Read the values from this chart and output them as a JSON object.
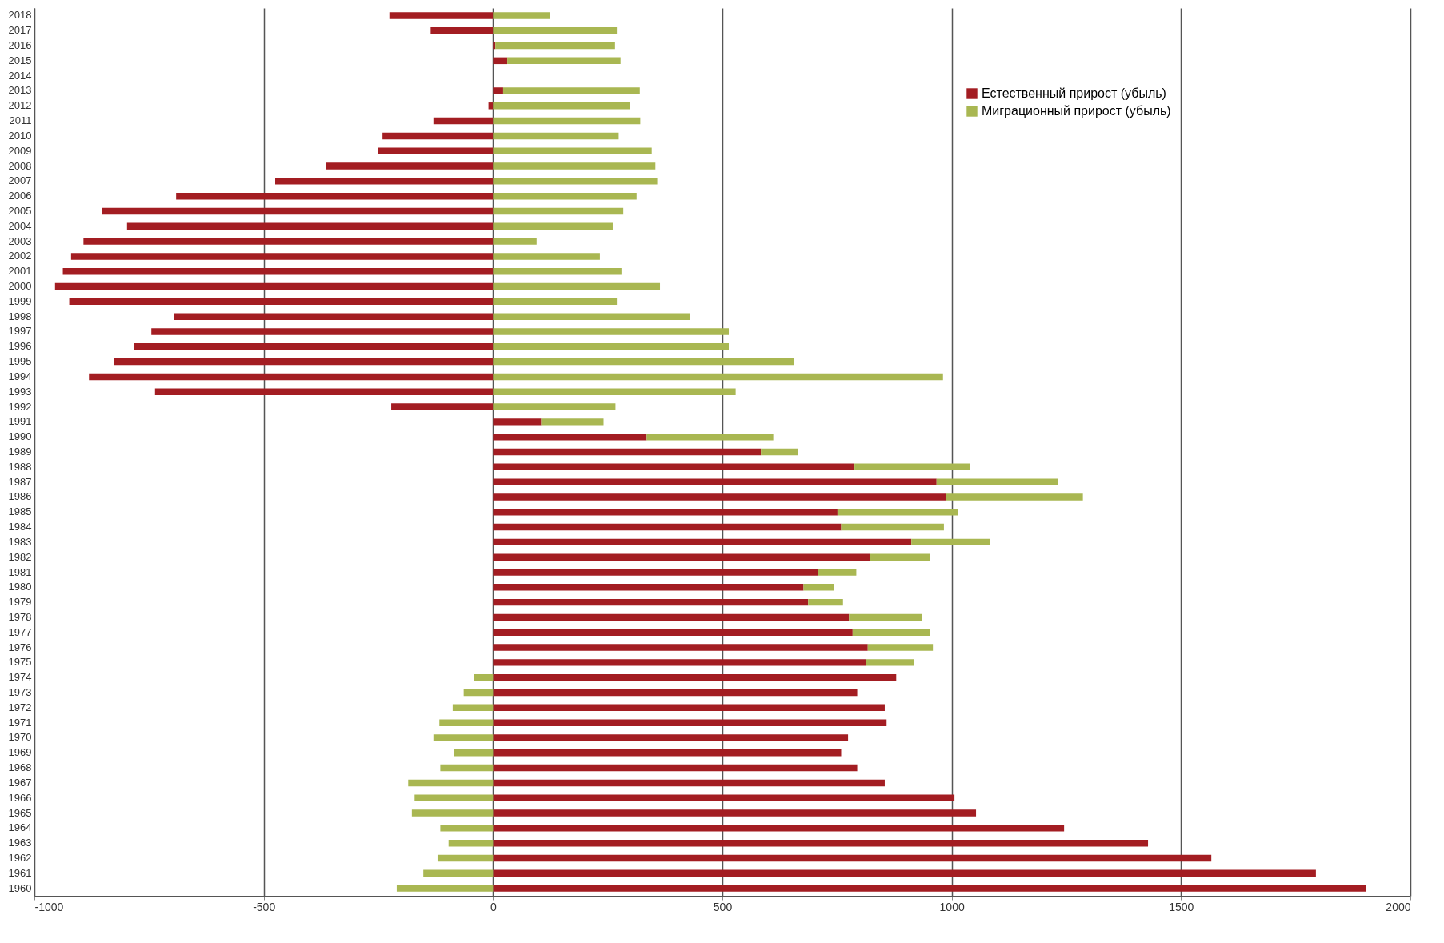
{
  "chart_data": {
    "type": "bar",
    "orientation": "horizontal",
    "stacked": true,
    "categories": [
      "2018",
      "2017",
      "2016",
      "2015",
      "2014",
      "2013",
      "2012",
      "2011",
      "2010",
      "2009",
      "2008",
      "2007",
      "2006",
      "2005",
      "2004",
      "2003",
      "2002",
      "2001",
      "2000",
      "1999",
      "1998",
      "1997",
      "1996",
      "1995",
      "1994",
      "1993",
      "1992",
      "1991",
      "1990",
      "1989",
      "1988",
      "1987",
      "1986",
      "1985",
      "1984",
      "1983",
      "1982",
      "1981",
      "1980",
      "1979",
      "1978",
      "1977",
      "1976",
      "1975",
      "1974",
      "1973",
      "1972",
      "1971",
      "1970",
      "1969",
      "1968",
      "1967",
      "1966",
      "1965",
      "1964",
      "1963",
      "1962",
      "1961",
      "1960"
    ],
    "series": [
      {
        "name": "Естественный прирост (убыль)",
        "color": "#a31d22",
        "values": [
          -226,
          -136,
          5,
          31,
          null,
          22,
          -10,
          -130,
          -241,
          -251,
          -364,
          -475,
          -691,
          -852,
          -798,
          -893,
          -920,
          -938,
          -955,
          -924,
          -695,
          -745,
          -782,
          -827,
          -881,
          -737,
          -222,
          105,
          335,
          584,
          788,
          967,
          988,
          751,
          759,
          912,
          821,
          708,
          677,
          687,
          776,
          784,
          817,
          813,
          879,
          794,
          854,
          858,
          774,
          759,
          794,
          854,
          1006,
          1053,
          1245,
          1428,
          1566,
          1794,
          1903
        ]
      },
      {
        "name": "Миграционный прирост (убыль)",
        "color": "#a9b752",
        "values": [
          125,
          270,
          261,
          247,
          null,
          298,
          298,
          321,
          274,
          346,
          354,
          358,
          313,
          284,
          261,
          95,
          233,
          280,
          364,
          270,
          430,
          514,
          514,
          656,
          981,
          529,
          267,
          136,
          276,
          80,
          251,
          265,
          298,
          263,
          224,
          171,
          132,
          84,
          66,
          76,
          160,
          169,
          142,
          105,
          -41,
          -64,
          -88,
          -117,
          -130,
          -86,
          -115,
          -185,
          -171,
          -177,
          -115,
          -97,
          -121,
          -152,
          -210
        ]
      }
    ],
    "xlim": [
      -1000,
      2000
    ],
    "xticks": [
      -1000,
      -500,
      0,
      500,
      1000,
      1500,
      2000
    ],
    "grid": "x",
    "legend": "top right"
  }
}
